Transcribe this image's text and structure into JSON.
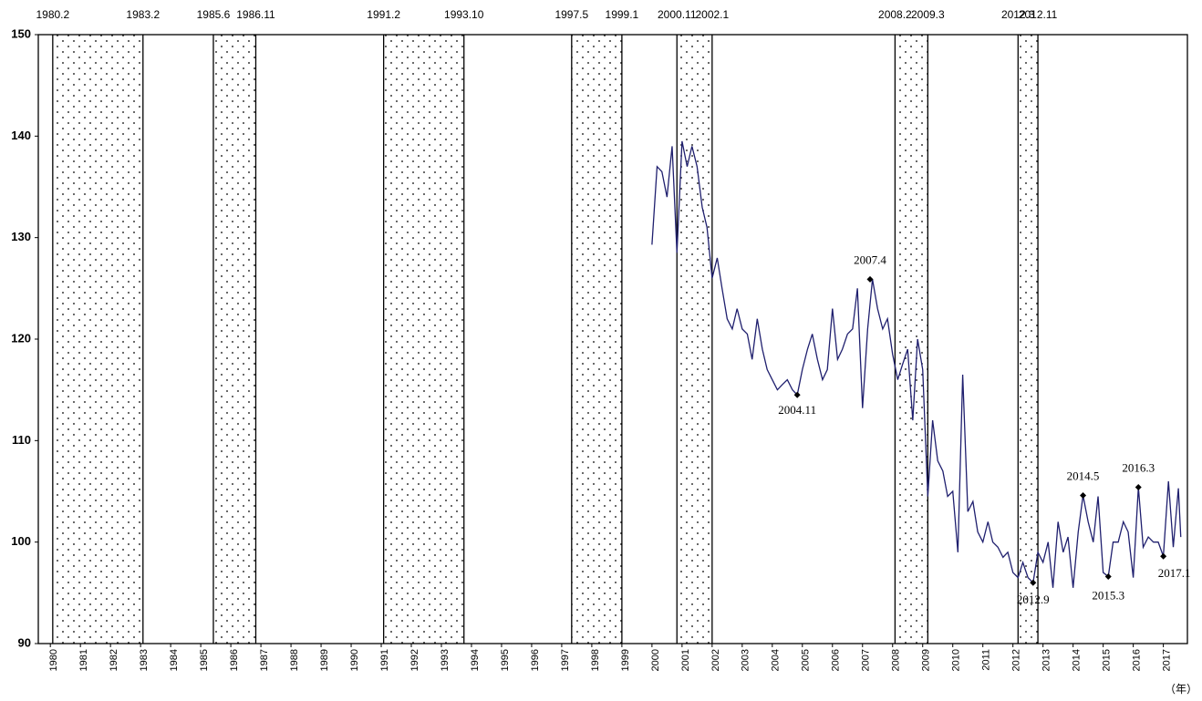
{
  "chart_data": {
    "type": "line",
    "xlim": [
      1979.6,
      2017.8
    ],
    "ylim": [
      90,
      150
    ],
    "yticks": [
      90,
      100,
      110,
      120,
      130,
      140,
      150
    ],
    "xticks": [
      1980,
      1981,
      1982,
      1983,
      1984,
      1985,
      1986,
      1987,
      1988,
      1989,
      1990,
      1991,
      1992,
      1993,
      1994,
      1995,
      1996,
      1997,
      1998,
      1999,
      2000,
      2001,
      2002,
      2003,
      2004,
      2005,
      2006,
      2007,
      2008,
      2009,
      2010,
      2011,
      2012,
      2013,
      2014,
      2015,
      2016,
      2017
    ],
    "x_unit": "（年）",
    "bands": [
      {
        "start": {
          "value": 1980.08,
          "label": "1980.2"
        },
        "end": {
          "value": 1983.08,
          "label": "1983.2"
        }
      },
      {
        "start": {
          "value": 1985.42,
          "label": "1985.6"
        },
        "end": {
          "value": 1986.83,
          "label": "1986.11"
        }
      },
      {
        "start": {
          "value": 1991.08,
          "label": "1991.2"
        },
        "end": {
          "value": 1993.75,
          "label": "1993.10"
        }
      },
      {
        "start": {
          "value": 1997.33,
          "label": "1997.5"
        },
        "end": {
          "value": 1999.0,
          "label": "1999.1"
        }
      },
      {
        "start": {
          "value": 2000.83,
          "label": "2000.11"
        },
        "end": {
          "value": 2002.0,
          "label": "2002.1"
        }
      },
      {
        "start": {
          "value": 2008.08,
          "label": "2008.2"
        },
        "end": {
          "value": 2009.17,
          "label": "2009.3"
        }
      },
      {
        "start": {
          "value": 2012.17,
          "label": "2012.3"
        },
        "end": {
          "value": 2012.83,
          "label": "2012.11"
        }
      }
    ],
    "series": [
      {
        "color": "#1f1f6e",
        "x": [
          2000.0,
          2000.17,
          2000.33,
          2000.5,
          2000.67,
          2000.83,
          2001.0,
          2001.17,
          2001.33,
          2001.5,
          2001.67,
          2001.83,
          2002.0,
          2002.17,
          2002.33,
          2002.5,
          2002.67,
          2002.83,
          2003.0,
          2003.17,
          2003.33,
          2003.5,
          2003.67,
          2003.83,
          2004.0,
          2004.17,
          2004.33,
          2004.5,
          2004.67,
          2004.83,
          2005.0,
          2005.17,
          2005.33,
          2005.5,
          2005.67,
          2005.83,
          2006.0,
          2006.17,
          2006.33,
          2006.5,
          2006.67,
          2006.83,
          2007.0,
          2007.17,
          2007.33,
          2007.5,
          2007.67,
          2007.83,
          2008.0,
          2008.17,
          2008.33,
          2008.5,
          2008.67,
          2008.83,
          2009.0,
          2009.17,
          2009.33,
          2009.5,
          2009.67,
          2009.83,
          2010.0,
          2010.17,
          2010.33,
          2010.5,
          2010.67,
          2010.83,
          2011.0,
          2011.17,
          2011.33,
          2011.5,
          2011.67,
          2011.83,
          2012.0,
          2012.17,
          2012.33,
          2012.5,
          2012.67,
          2012.83,
          2013.0,
          2013.17,
          2013.33,
          2013.5,
          2013.67,
          2013.83,
          2014.0,
          2014.17,
          2014.33,
          2014.5,
          2014.67,
          2014.83,
          2015.0,
          2015.17,
          2015.33,
          2015.5,
          2015.67,
          2015.83,
          2016.0,
          2016.17,
          2016.33,
          2016.5,
          2016.67,
          2016.83,
          2017.0,
          2017.17,
          2017.33,
          2017.5,
          2017.58
        ],
        "values": [
          129.3,
          137,
          136.5,
          134,
          139,
          128.5,
          139.5,
          137,
          139,
          137,
          133,
          131,
          126,
          128,
          125,
          122,
          121,
          123,
          121,
          120.5,
          118,
          122,
          119,
          117,
          116,
          115,
          115.5,
          116,
          115,
          114.5,
          117,
          119,
          120.5,
          118,
          116,
          117,
          123,
          118,
          119,
          120.5,
          121,
          125,
          113.2,
          121,
          125.9,
          123,
          121,
          122,
          118.5,
          116,
          117.5,
          119,
          112,
          120,
          117,
          104.5,
          112,
          108,
          107,
          104.5,
          105,
          99,
          116.5,
          103,
          104,
          101,
          100,
          102,
          100,
          99.5,
          98.5,
          99,
          97,
          96.5,
          98,
          96.5,
          96,
          99,
          98,
          100,
          95.5,
          102,
          99,
          100.5,
          95.5,
          101,
          104.6,
          102,
          100,
          104.5,
          97,
          96.6,
          100,
          100,
          102,
          101,
          96.5,
          105.4,
          99.5,
          100.5,
          100,
          100,
          98.6,
          106,
          99.5,
          105.3,
          100.5
        ]
      }
    ],
    "annotations": [
      {
        "x": 2004.83,
        "y": 114.5,
        "text": "2004.11"
      },
      {
        "x": 2007.25,
        "y": 125.9,
        "text": "2007.4"
      },
      {
        "x": 2012.67,
        "y": 96,
        "text": "2012.9"
      },
      {
        "x": 2014.33,
        "y": 104.6,
        "text": "2014.5"
      },
      {
        "x": 2015.17,
        "y": 96.6,
        "text": "2015.3"
      },
      {
        "x": 2016.17,
        "y": 105.4,
        "text": "2016.3"
      },
      {
        "x": 2017.0,
        "y": 98.6,
        "text": "2017.1"
      }
    ]
  }
}
